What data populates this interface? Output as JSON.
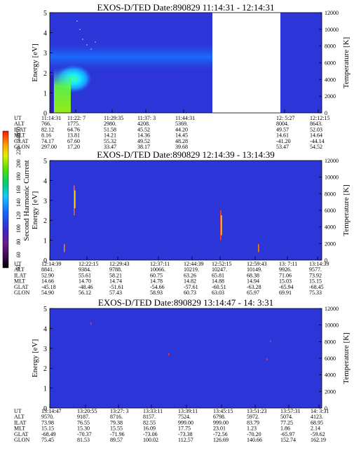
{
  "figure": {
    "colorbar": {
      "label": "Second Harmonic Current",
      "ticks": [
        "40",
        "60",
        "80",
        "100",
        "120",
        "140",
        "160",
        "180",
        "200",
        "220",
        "240",
        "250"
      ]
    }
  },
  "chart_data": [
    {
      "type": "heatmap",
      "title": "EXOS-D/TED   Date:890829  11:14:31 - 12:14:31",
      "ylabel": "Energy [eV]",
      "ylabel_right": "Temperature [K]",
      "ylim": [
        0,
        5
      ],
      "ylim_right": [
        0,
        12000
      ],
      "yticks": [
        "0",
        "1",
        "2",
        "3",
        "4",
        "5"
      ],
      "yticks_right": [
        "0",
        "2000",
        "4000",
        "6000",
        "8000",
        "10000",
        "12000"
      ],
      "row_labels": [
        "UT",
        "ALT",
        "ILAT",
        "MLT",
        "GLAT",
        "GLON"
      ],
      "columns": [
        [
          "11:14:31",
          "766.",
          "82.12",
          "8.16",
          "74.17",
          "297.00"
        ],
        [
          "11:22: 7",
          "1775.",
          "64.76",
          "13.81",
          "67.60",
          "17.20"
        ],
        [
          "11:29:35",
          "2980.",
          "51.58",
          "14.21",
          "55.32",
          "33.47"
        ],
        [
          "11:37: 3",
          "4208.",
          "45.52",
          "14.36",
          "49.52",
          "38.17"
        ],
        [
          "11:44:31",
          "5369.",
          "44.20",
          "14.45",
          "48.28",
          "39.68"
        ],
        [
          "12: 5:27",
          "8004.",
          "49.57",
          "14.61",
          "-41.20",
          "53.47"
        ],
        [
          "12:12:15",
          "8643.",
          "52.03",
          "14.64",
          "-44.14",
          "54.52"
        ]
      ]
    },
    {
      "type": "heatmap",
      "title": "EXOS-D/TED   Date:890829  12:14:39 - 13:14:39",
      "ylabel": "Energy [eV]",
      "ylabel_right": "Temperature [K]",
      "ylim": [
        0,
        5
      ],
      "ylim_right": [
        0,
        12000
      ],
      "yticks": [
        "0",
        "1",
        "2",
        "3",
        "4",
        "5"
      ],
      "yticks_right": [
        "0",
        "2000",
        "4000",
        "6000",
        "8000",
        "10000",
        "12000"
      ],
      "row_labels": [
        "UT",
        "ALT",
        "ILAT",
        "MLT",
        "GLAT",
        "GLON"
      ],
      "columns": [
        [
          "12:14:39",
          "8841.",
          "52.90",
          "14.66",
          "-45.18",
          "54.90"
        ],
        [
          "12:22:15",
          "9384.",
          "55.61",
          "14.70",
          "-48.46",
          "56.12"
        ],
        [
          "12:29:43",
          "9788.",
          "58.21",
          "14.74",
          "-51.61",
          "57.43"
        ],
        [
          "12:37:11",
          "10066.",
          "60.75",
          "14.78",
          "-54.66",
          "58.93"
        ],
        [
          "12:44:39",
          "10219.",
          "63.26",
          "14.82",
          "-57.61",
          "60.73"
        ],
        [
          "12:52:15",
          "10247.",
          "65.81",
          "14.88",
          "-60.51",
          "63.03"
        ],
        [
          "12:59:43",
          "10149.",
          "68.38",
          "14.94",
          "-63.28",
          "65.97"
        ],
        [
          "13: 7:11",
          "9926.",
          "71.06",
          "15.03",
          "-65.94",
          "69.91"
        ],
        [
          "13:14:39",
          "9577.",
          "73.92",
          "15.15",
          "-68.45",
          "75.33"
        ]
      ]
    },
    {
      "type": "heatmap",
      "title": "EXOS-D/TED   Date:890829  13:14:47 - 14: 3:31",
      "ylabel": "Energy [eV]",
      "ylabel_right": "Temperature [K]",
      "ylim": [
        0,
        5
      ],
      "ylim_right": [
        0,
        12000
      ],
      "yticks": [
        "0",
        "1",
        "2",
        "3",
        "4",
        "5"
      ],
      "yticks_right": [
        "0",
        "2000",
        "4000",
        "6000",
        "8000",
        "10000",
        "12000"
      ],
      "row_labels": [
        "UT",
        "ALT",
        "ILAT",
        "MLT",
        "GLAT",
        "GLON"
      ],
      "columns": [
        [
          "13:14:47",
          "9570.",
          "73.98",
          "15.15",
          "-68.49",
          "75.45"
        ],
        [
          "13:20:55",
          "9187.",
          "76.55",
          "15.30",
          "-70.37",
          "81.53"
        ],
        [
          "13:27: 3",
          "8716.",
          "79.38",
          "15.55",
          "-71.96",
          "89.57"
        ],
        [
          "13:33:11",
          "8157.",
          "82.55",
          "16.09",
          "-73.06",
          "100.02"
        ],
        [
          "13:39:11",
          "7524.",
          "999.00",
          "17.75",
          "-73.38",
          "112.57"
        ],
        [
          "13:45:15",
          "6798.",
          "999.00",
          "23.01",
          "-72.56",
          "126.69"
        ],
        [
          "13:51:23",
          "5972.",
          "83.79",
          "1.23",
          "-70.20",
          "140.66"
        ],
        [
          "13:57:31",
          "5074.",
          "77.25",
          "1.86",
          "-65.97",
          "152.74"
        ],
        [
          "14: 3:31",
          "4123.",
          "68.95",
          "2.14",
          "-59.62",
          "162.19"
        ]
      ]
    }
  ]
}
